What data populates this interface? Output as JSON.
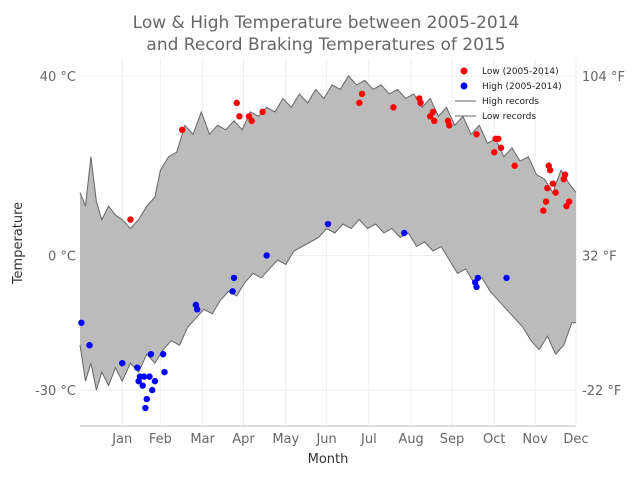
{
  "chart_data": {
    "type": "line",
    "title_line1": "Low & High Temperature between 2005-2014",
    "title_line2": "and Record Braking Temperatures of 2015",
    "xlabel": "Month",
    "ylabel": "Temperature",
    "ylim": [
      -38,
      44
    ],
    "x_range_days": [
      1,
      365
    ],
    "grid": true,
    "legend_position": "top-right",
    "months": [
      "Jan",
      "Feb",
      "Mar",
      "Apr",
      "May",
      "Jun",
      "Jul",
      "Aug",
      "Sep",
      "Oct",
      "Nov",
      "Dec"
    ],
    "month_days": [
      32,
      60,
      91,
      121,
      152,
      182,
      213,
      244,
      274,
      305,
      335,
      365
    ],
    "left_ticks": [
      {
        "value": 40,
        "label": "40 °C"
      },
      {
        "value": 0,
        "label": "0 °C"
      },
      {
        "value": -30,
        "label": "-30 °C"
      }
    ],
    "right_ticks": [
      {
        "value": 40,
        "label": "104 °F"
      },
      {
        "value": 0,
        "label": "32 °F"
      },
      {
        "value": -30,
        "label": "-22 °F"
      }
    ],
    "legend": {
      "low": "Low (2005-2014)",
      "high": "High (2005-2014)",
      "high_records": "High records",
      "low_records": "Low records"
    },
    "colors": {
      "fill": "#bbbbbb",
      "line": "#666666",
      "red": "#ff0000",
      "blue": "#0000ff"
    },
    "high_envelope": [
      [
        1,
        14
      ],
      [
        5,
        11
      ],
      [
        9,
        22
      ],
      [
        13,
        12
      ],
      [
        17,
        8
      ],
      [
        22,
        11
      ],
      [
        27,
        9
      ],
      [
        32,
        8
      ],
      [
        38,
        6
      ],
      [
        44,
        8
      ],
      [
        50,
        11
      ],
      [
        56,
        13
      ],
      [
        60,
        19
      ],
      [
        66,
        22
      ],
      [
        72,
        23
      ],
      [
        78,
        29
      ],
      [
        84,
        27
      ],
      [
        90,
        32
      ],
      [
        96,
        27
      ],
      [
        102,
        29
      ],
      [
        108,
        28
      ],
      [
        114,
        30
      ],
      [
        120,
        28
      ],
      [
        126,
        32
      ],
      [
        132,
        31
      ],
      [
        138,
        33
      ],
      [
        144,
        32
      ],
      [
        150,
        35
      ],
      [
        156,
        33
      ],
      [
        162,
        36
      ],
      [
        168,
        34
      ],
      [
        174,
        37
      ],
      [
        180,
        35
      ],
      [
        186,
        38
      ],
      [
        192,
        37
      ],
      [
        198,
        40
      ],
      [
        204,
        38
      ],
      [
        210,
        39
      ],
      [
        216,
        37
      ],
      [
        222,
        38
      ],
      [
        228,
        36
      ],
      [
        234,
        37
      ],
      [
        240,
        35
      ],
      [
        246,
        36
      ],
      [
        252,
        33
      ],
      [
        258,
        35
      ],
      [
        264,
        31
      ],
      [
        270,
        33
      ],
      [
        276,
        29
      ],
      [
        282,
        31
      ],
      [
        288,
        27
      ],
      [
        294,
        29
      ],
      [
        300,
        25
      ],
      [
        306,
        26
      ],
      [
        312,
        22
      ],
      [
        318,
        24
      ],
      [
        324,
        21
      ],
      [
        330,
        22
      ],
      [
        336,
        18
      ],
      [
        342,
        17
      ],
      [
        348,
        14
      ],
      [
        354,
        19
      ],
      [
        360,
        16
      ],
      [
        365,
        14
      ]
    ],
    "low_envelope": [
      [
        1,
        -20
      ],
      [
        5,
        -28
      ],
      [
        9,
        -24
      ],
      [
        13,
        -30
      ],
      [
        17,
        -26
      ],
      [
        22,
        -29
      ],
      [
        27,
        -25
      ],
      [
        32,
        -28
      ],
      [
        38,
        -24
      ],
      [
        44,
        -26
      ],
      [
        50,
        -22
      ],
      [
        56,
        -24
      ],
      [
        62,
        -21
      ],
      [
        68,
        -19
      ],
      [
        74,
        -20
      ],
      [
        80,
        -16
      ],
      [
        86,
        -14
      ],
      [
        92,
        -12
      ],
      [
        98,
        -13
      ],
      [
        104,
        -10
      ],
      [
        110,
        -8
      ],
      [
        116,
        -9
      ],
      [
        122,
        -6
      ],
      [
        128,
        -4
      ],
      [
        134,
        -5
      ],
      [
        140,
        -3
      ],
      [
        146,
        -1
      ],
      [
        152,
        -2
      ],
      [
        158,
        1
      ],
      [
        164,
        2
      ],
      [
        170,
        3
      ],
      [
        176,
        4
      ],
      [
        182,
        6
      ],
      [
        188,
        5
      ],
      [
        194,
        7
      ],
      [
        200,
        6
      ],
      [
        206,
        8
      ],
      [
        212,
        6
      ],
      [
        218,
        7
      ],
      [
        224,
        5
      ],
      [
        230,
        6
      ],
      [
        236,
        4
      ],
      [
        242,
        5
      ],
      [
        248,
        2
      ],
      [
        254,
        3
      ],
      [
        260,
        1
      ],
      [
        266,
        2
      ],
      [
        272,
        -1
      ],
      [
        278,
        -4
      ],
      [
        284,
        -3
      ],
      [
        290,
        -6
      ],
      [
        296,
        -5
      ],
      [
        302,
        -8
      ],
      [
        308,
        -10
      ],
      [
        314,
        -12
      ],
      [
        320,
        -14
      ],
      [
        326,
        -16
      ],
      [
        332,
        -19
      ],
      [
        338,
        -21
      ],
      [
        344,
        -18
      ],
      [
        350,
        -22
      ],
      [
        356,
        -20
      ],
      [
        362,
        -15
      ],
      [
        365,
        -15
      ]
    ],
    "red_points": [
      [
        38,
        8
      ],
      [
        76,
        28
      ],
      [
        116,
        34
      ],
      [
        118,
        31
      ],
      [
        125,
        31
      ],
      [
        127,
        30
      ],
      [
        135,
        32
      ],
      [
        208,
        36
      ],
      [
        206,
        34
      ],
      [
        231,
        33
      ],
      [
        250,
        35
      ],
      [
        251,
        34
      ],
      [
        258,
        31
      ],
      [
        260,
        32
      ],
      [
        261,
        30
      ],
      [
        272,
        29
      ],
      [
        271,
        30
      ],
      [
        292,
        27
      ],
      [
        305,
        23
      ],
      [
        306,
        26
      ],
      [
        308,
        26
      ],
      [
        310,
        24
      ],
      [
        320,
        20
      ],
      [
        341,
        10
      ],
      [
        343,
        12
      ],
      [
        344,
        15
      ],
      [
        345,
        20
      ],
      [
        346,
        19
      ],
      [
        348,
        16
      ],
      [
        350,
        14
      ],
      [
        356,
        17
      ],
      [
        357,
        18
      ],
      [
        358,
        11
      ],
      [
        360,
        12
      ]
    ],
    "blue_points": [
      [
        2,
        -15
      ],
      [
        8,
        -20
      ],
      [
        32,
        -24
      ],
      [
        43,
        -25
      ],
      [
        44,
        -28
      ],
      [
        45,
        -27
      ],
      [
        47,
        -29
      ],
      [
        48,
        -27
      ],
      [
        49,
        -34
      ],
      [
        50,
        -32
      ],
      [
        52,
        -27
      ],
      [
        53,
        -22
      ],
      [
        54,
        -30
      ],
      [
        56,
        -28
      ],
      [
        62,
        -22
      ],
      [
        63,
        -26
      ],
      [
        86,
        -11
      ],
      [
        87,
        -12
      ],
      [
        113,
        -8
      ],
      [
        114,
        -5
      ],
      [
        138,
        0
      ],
      [
        183,
        7
      ],
      [
        239,
        5
      ],
      [
        291,
        -6
      ],
      [
        292,
        -7
      ],
      [
        293,
        -5
      ],
      [
        314,
        -5
      ]
    ]
  }
}
